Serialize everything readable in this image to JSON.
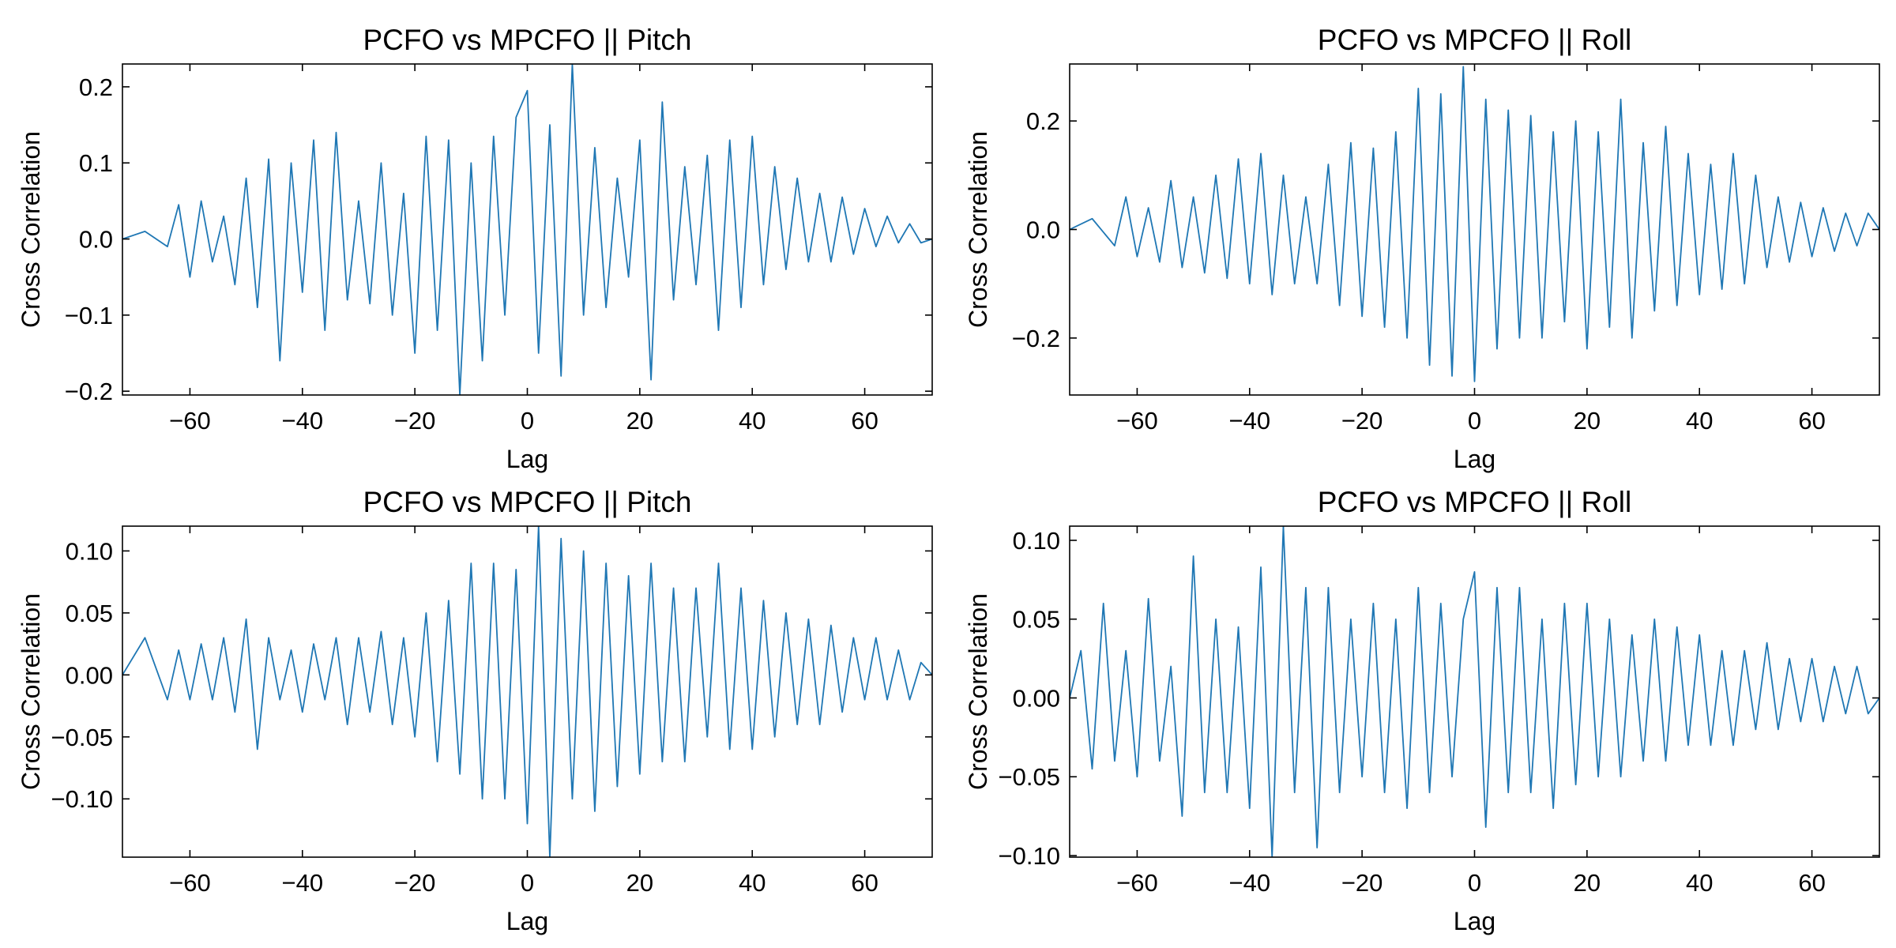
{
  "figure": {
    "colors": {
      "line": "#1f77b4",
      "axes": "#000000",
      "background": "#ffffff"
    }
  },
  "chart_data": [
    {
      "type": "line",
      "title": "PCFO vs MPCFO || Pitch",
      "xlabel": "Lag",
      "ylabel": "Cross Correlation",
      "xlim": [
        -72,
        72
      ],
      "ylim": [
        -0.205,
        0.23
      ],
      "xticks": [
        -60,
        -40,
        -20,
        0,
        20,
        40,
        60
      ],
      "xtick_labels": [
        "−60",
        "−40",
        "−20",
        "0",
        "20",
        "40",
        "60"
      ],
      "yticks": [
        -0.2,
        -0.1,
        0.0,
        0.1,
        0.2
      ],
      "ytick_labels": [
        "−0.2",
        "−0.1",
        "0.0",
        "0.1",
        "0.2"
      ],
      "grid": false,
      "series": [
        {
          "color": "#1f77b4",
          "x": [
            -72,
            -68,
            -64,
            -62,
            -60,
            -58,
            -56,
            -54,
            -52,
            -50,
            -48,
            -46,
            -44,
            -42,
            -40,
            -38,
            -36,
            -34,
            -32,
            -30,
            -28,
            -26,
            -24,
            -22,
            -20,
            -18,
            -16,
            -14,
            -12,
            -10,
            -8,
            -6,
            -4,
            -2,
            0,
            2,
            4,
            6,
            8,
            10,
            12,
            14,
            16,
            18,
            20,
            22,
            24,
            26,
            28,
            30,
            32,
            34,
            36,
            38,
            40,
            42,
            44,
            46,
            48,
            50,
            52,
            54,
            56,
            58,
            60,
            62,
            64,
            66,
            68,
            70,
            72
          ],
          "y": [
            0.0,
            0.01,
            -0.01,
            0.045,
            -0.05,
            0.05,
            -0.03,
            0.03,
            -0.06,
            0.08,
            -0.09,
            0.105,
            -0.16,
            0.1,
            -0.07,
            0.13,
            -0.12,
            0.14,
            -0.08,
            0.05,
            -0.085,
            0.1,
            -0.1,
            0.06,
            -0.15,
            0.135,
            -0.12,
            0.13,
            -0.205,
            0.1,
            -0.16,
            0.135,
            -0.1,
            0.16,
            0.195,
            -0.15,
            0.15,
            -0.18,
            0.23,
            -0.1,
            0.12,
            -0.09,
            0.08,
            -0.05,
            0.13,
            -0.185,
            0.18,
            -0.08,
            0.095,
            -0.06,
            0.11,
            -0.12,
            0.13,
            -0.09,
            0.135,
            -0.06,
            0.095,
            -0.04,
            0.08,
            -0.03,
            0.06,
            -0.03,
            0.055,
            -0.02,
            0.04,
            -0.01,
            0.03,
            -0.005,
            0.02,
            -0.005,
            0.0
          ]
        }
      ]
    },
    {
      "type": "line",
      "title": "PCFO vs MPCFO || Roll",
      "xlabel": "Lag",
      "ylabel": "Cross Correlation",
      "xlim": [
        -72,
        72
      ],
      "ylim": [
        -0.305,
        0.305
      ],
      "xticks": [
        -60,
        -40,
        -20,
        0,
        20,
        40,
        60
      ],
      "xtick_labels": [
        "−60",
        "−40",
        "−20",
        "0",
        "20",
        "40",
        "60"
      ],
      "yticks": [
        -0.2,
        0.0,
        0.2
      ],
      "ytick_labels": [
        "−0.2",
        "0.0",
        "0.2"
      ],
      "grid": false,
      "series": [
        {
          "color": "#1f77b4",
          "x": [
            -72,
            -68,
            -64,
            -62,
            -60,
            -58,
            -56,
            -54,
            -52,
            -50,
            -48,
            -46,
            -44,
            -42,
            -40,
            -38,
            -36,
            -34,
            -32,
            -30,
            -28,
            -26,
            -24,
            -22,
            -20,
            -18,
            -16,
            -14,
            -12,
            -10,
            -8,
            -6,
            -4,
            -2,
            0,
            2,
            4,
            6,
            8,
            10,
            12,
            14,
            16,
            18,
            20,
            22,
            24,
            26,
            28,
            30,
            32,
            34,
            36,
            38,
            40,
            42,
            44,
            46,
            48,
            50,
            52,
            54,
            56,
            58,
            60,
            62,
            64,
            66,
            68,
            70,
            72
          ],
          "y": [
            0.0,
            0.02,
            -0.03,
            0.06,
            -0.05,
            0.04,
            -0.06,
            0.09,
            -0.07,
            0.06,
            -0.08,
            0.1,
            -0.09,
            0.13,
            -0.1,
            0.14,
            -0.12,
            0.1,
            -0.1,
            0.06,
            -0.1,
            0.12,
            -0.14,
            0.16,
            -0.16,
            0.15,
            -0.18,
            0.18,
            -0.2,
            0.26,
            -0.25,
            0.25,
            -0.27,
            0.3,
            -0.28,
            0.24,
            -0.22,
            0.22,
            -0.2,
            0.21,
            -0.2,
            0.18,
            -0.17,
            0.2,
            -0.22,
            0.18,
            -0.18,
            0.24,
            -0.2,
            0.16,
            -0.15,
            0.19,
            -0.14,
            0.14,
            -0.12,
            0.12,
            -0.11,
            0.14,
            -0.1,
            0.1,
            -0.07,
            0.06,
            -0.06,
            0.05,
            -0.05,
            0.04,
            -0.04,
            0.03,
            -0.03,
            0.03,
            0.0
          ]
        }
      ]
    },
    {
      "type": "line",
      "title": "PCFO vs MPCFO || Pitch",
      "xlabel": "Lag",
      "ylabel": "Cross Correlation",
      "xlim": [
        -72,
        72
      ],
      "ylim": [
        -0.147,
        0.12
      ],
      "xticks": [
        -60,
        -40,
        -20,
        0,
        20,
        40,
        60
      ],
      "xtick_labels": [
        "−60",
        "−40",
        "−20",
        "0",
        "20",
        "40",
        "60"
      ],
      "yticks": [
        -0.1,
        -0.05,
        0.0,
        0.05,
        0.1
      ],
      "ytick_labels": [
        "−0.10",
        "−0.05",
        "0.00",
        "0.05",
        "0.10"
      ],
      "grid": false,
      "series": [
        {
          "color": "#1f77b4",
          "x": [
            -72,
            -68,
            -64,
            -62,
            -60,
            -58,
            -56,
            -54,
            -52,
            -50,
            -48,
            -46,
            -44,
            -42,
            -40,
            -38,
            -36,
            -34,
            -32,
            -30,
            -28,
            -26,
            -24,
            -22,
            -20,
            -18,
            -16,
            -14,
            -12,
            -10,
            -8,
            -6,
            -4,
            -2,
            0,
            2,
            4,
            6,
            8,
            10,
            12,
            14,
            16,
            18,
            20,
            22,
            24,
            26,
            28,
            30,
            32,
            34,
            36,
            38,
            40,
            42,
            44,
            46,
            48,
            50,
            52,
            54,
            56,
            58,
            60,
            62,
            64,
            66,
            68,
            70,
            72
          ],
          "y": [
            0.0,
            0.03,
            -0.02,
            0.02,
            -0.02,
            0.025,
            -0.02,
            0.03,
            -0.03,
            0.045,
            -0.06,
            0.03,
            -0.02,
            0.02,
            -0.03,
            0.025,
            -0.02,
            0.03,
            -0.04,
            0.03,
            -0.03,
            0.035,
            -0.04,
            0.03,
            -0.05,
            0.05,
            -0.07,
            0.06,
            -0.08,
            0.09,
            -0.1,
            0.09,
            -0.1,
            0.085,
            -0.12,
            0.12,
            -0.147,
            0.11,
            -0.1,
            0.1,
            -0.11,
            0.09,
            -0.09,
            0.08,
            -0.08,
            0.09,
            -0.07,
            0.07,
            -0.07,
            0.07,
            -0.05,
            0.09,
            -0.06,
            0.07,
            -0.06,
            0.06,
            -0.05,
            0.05,
            -0.04,
            0.045,
            -0.04,
            0.04,
            -0.03,
            0.03,
            -0.02,
            0.03,
            -0.02,
            0.02,
            -0.02,
            0.01,
            0.0
          ]
        }
      ]
    },
    {
      "type": "line",
      "title": "PCFO vs MPCFO || Roll",
      "xlabel": "Lag",
      "ylabel": "Cross Correlation",
      "xlim": [
        -72,
        72
      ],
      "ylim": [
        -0.101,
        0.109
      ],
      "xticks": [
        -60,
        -40,
        -20,
        0,
        20,
        40,
        60
      ],
      "xtick_labels": [
        "−60",
        "−40",
        "−20",
        "0",
        "20",
        "40",
        "60"
      ],
      "yticks": [
        -0.1,
        -0.05,
        0.0,
        0.05,
        0.1
      ],
      "ytick_labels": [
        "−0.10",
        "−0.05",
        "0.00",
        "0.05",
        "0.10"
      ],
      "grid": false,
      "series": [
        {
          "color": "#1f77b4",
          "x": [
            -72,
            -70,
            -68,
            -66,
            -64,
            -62,
            -60,
            -58,
            -56,
            -54,
            -52,
            -50,
            -48,
            -46,
            -44,
            -42,
            -40,
            -38,
            -36,
            -34,
            -32,
            -30,
            -28,
            -26,
            -24,
            -22,
            -20,
            -18,
            -16,
            -14,
            -12,
            -10,
            -8,
            -6,
            -4,
            -2,
            0,
            2,
            4,
            6,
            8,
            10,
            12,
            14,
            16,
            18,
            20,
            22,
            24,
            26,
            28,
            30,
            32,
            34,
            36,
            38,
            40,
            42,
            44,
            46,
            48,
            50,
            52,
            54,
            56,
            58,
            60,
            62,
            64,
            66,
            68,
            70,
            72
          ],
          "y": [
            0.0,
            0.03,
            -0.045,
            0.06,
            -0.04,
            0.03,
            -0.05,
            0.063,
            -0.04,
            0.02,
            -0.075,
            0.09,
            -0.06,
            0.05,
            -0.06,
            0.045,
            -0.07,
            0.083,
            -0.101,
            0.109,
            -0.06,
            0.07,
            -0.095,
            0.07,
            -0.06,
            0.05,
            -0.05,
            0.06,
            -0.06,
            0.05,
            -0.07,
            0.07,
            -0.06,
            0.06,
            -0.05,
            0.05,
            0.08,
            -0.082,
            0.07,
            -0.06,
            0.07,
            -0.06,
            0.05,
            -0.07,
            0.06,
            -0.055,
            0.06,
            -0.05,
            0.05,
            -0.05,
            0.04,
            -0.04,
            0.05,
            -0.04,
            0.045,
            -0.03,
            0.04,
            -0.03,
            0.03,
            -0.03,
            0.03,
            -0.02,
            0.035,
            -0.02,
            0.025,
            -0.015,
            0.025,
            -0.015,
            0.02,
            -0.01,
            0.02,
            -0.01,
            0.0
          ]
        }
      ]
    }
  ]
}
